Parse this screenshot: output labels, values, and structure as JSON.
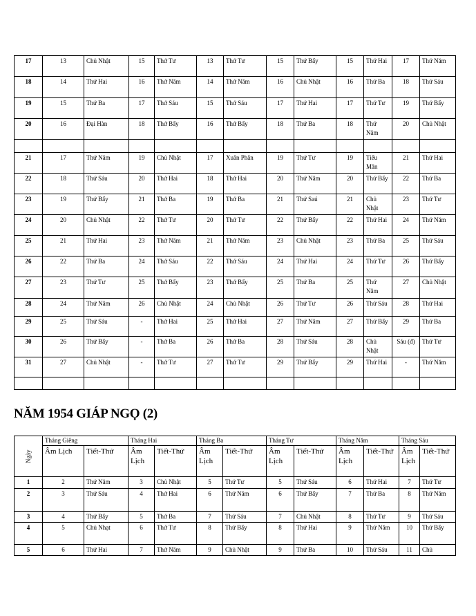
{
  "table_top": {
    "rows": [
      [
        "17",
        "13",
        "Chủ Nhật",
        "15",
        "Thứ Tư",
        "13",
        "Thứ Tư",
        "15",
        "Thứ Bẩy",
        "15",
        "Thứ Hai",
        "17",
        "Thứ Năm"
      ],
      [
        "18",
        "14",
        "Thứ Hai",
        "16",
        "Thứ Năm",
        "14",
        "Thứ Năm",
        "16",
        "Chủ Nhật",
        "16",
        "Thứ Ba",
        "18",
        "Thứ Sáu"
      ],
      [
        "19",
        "15",
        "Thứ Ba",
        "17",
        "Thứ Sáu",
        "15",
        "Thứ Sáu",
        "17",
        "Thứ Hai",
        "17",
        "Thứ Tư",
        "19",
        "Thứ Bẩy"
      ],
      [
        "20",
        "16",
        "Đại Hàn",
        "18",
        "Thứ Bẩy",
        "16",
        "Thứ Bẩy",
        "18",
        "Thứ Ba",
        "18",
        "Thứ Năm",
        "20",
        "Chủ Nhật"
      ],
      [
        "",
        "",
        "",
        "",
        "",
        "",
        "",
        "",
        "",
        "",
        "",
        "",
        ""
      ],
      [
        "21",
        "17",
        "Thứ Năm",
        "19",
        "Chủ Nhật",
        "17",
        "Xuân Phân",
        "19",
        "Thứ Tư",
        "19",
        "Tiểu Mãn",
        "21",
        "Thứ Hai"
      ],
      [
        "22",
        "18",
        "Thứ Sáu",
        "20",
        "Thứ Hai",
        "18",
        "Thứ Hai",
        "20",
        "Thứ Năm",
        "20",
        "Thứ Bẩy",
        "22",
        "Thứ Ba"
      ],
      [
        "23",
        "19",
        "Thứ Bẩy",
        "21",
        "Thứ Ba",
        "19",
        "Thứ Ba",
        "21",
        "Thứ Saú",
        "21",
        "Chủ Nhật",
        "23",
        "Thứ Tư"
      ],
      [
        "24",
        "20",
        "Chủ Nhật",
        "22",
        "Thứ Tư",
        "20",
        "Thứ Tư",
        "22",
        "Thứ Bẩy",
        "22",
        "Thứ Hai",
        "24",
        "Thứ Năm"
      ],
      [
        "25",
        "21",
        "Thứ Hai",
        "23",
        "Thứ Năm",
        "21",
        "Thứ Năm",
        "23",
        "Chủ Nhật",
        "23",
        "Thứ Ba",
        "25",
        "Thứ Sáu"
      ],
      [
        "26",
        "22",
        "Thứ Ba",
        "24",
        "Thứ Sáu",
        "22",
        "Thứ Sáu",
        "24",
        "Thứ Hai",
        "24",
        "Thứ Tư",
        "26",
        "Thứ Bẩy"
      ],
      [
        "27",
        "23",
        "Thứ Tư",
        "25",
        "Thứ Bẩy",
        "23",
        "Thứ Bẩy",
        "25",
        "Thứ Ba",
        "25",
        "Thứ Năm",
        "27",
        "Chủ Nhật"
      ],
      [
        "28",
        "24",
        "Thứ Năm",
        "26",
        "Chủ Nhật",
        "24",
        "Chủ Nhật",
        "26",
        "Thứ Tư",
        "26",
        "Thứ Sáu",
        "28",
        "Thứ Hai"
      ],
      [
        "29",
        "25",
        "Thứ Sáu",
        "-",
        "Thứ Hai",
        "25",
        "Thứ Hai",
        "27",
        "Thứ Năm",
        "27",
        "Thứ Bẩy",
        "29",
        "Thứ Ba"
      ],
      [
        "30",
        "26",
        "Thứ Bẩy",
        "-",
        "Thứ Ba",
        "26",
        "Thứ Ba",
        "28",
        "Thứ Sáu",
        "28",
        "Chủ Nhật",
        "Sáu (đ)",
        "Thứ Tư"
      ],
      [
        "31",
        "27",
        "Chủ Nhật",
        "-",
        "Thứ Tư",
        "27",
        "Thứ Tư",
        "29",
        "Thứ Bẩy",
        "29",
        "Thứ Hai",
        "-",
        "Thứ Năm"
      ],
      [
        "",
        "",
        "",
        "",
        "",
        "",
        "",
        "",
        "",
        "",
        "",
        "",
        ""
      ]
    ]
  },
  "section_title": "NĂM 1954 GIÁP NGỌ (2)",
  "table_bottom": {
    "day_header": "Ngày",
    "months": [
      "Tháng Giêng",
      "Tháng Hai",
      "Tháng  Ba",
      "Tháng Tư",
      "Tháng Năm",
      "Tháng Sáu"
    ],
    "sub_headers": [
      "Âm Lịch",
      "Tiết-Thứ",
      "Âm Lịch",
      "Tiết-Thứ",
      "Âm Lịch",
      "Tiết-Thứ",
      "Âm Lịch",
      "Tiết-Thứ",
      "Âm Lịch",
      "Tiết-Thứ",
      "Âm Lịch",
      "Tiết-Thứ"
    ],
    "rows": [
      [
        "1",
        "2",
        "Thứ Năm",
        "3",
        "Chủ Nhật",
        "5",
        "Thứ Tư",
        "5",
        "Thứ Sáu",
        "6",
        "Thứ Hai",
        "7",
        "Thứ Tư"
      ],
      [
        "2",
        "3",
        "Thứ Sáu",
        "4",
        "Thứ Hai",
        "6",
        "Thứ Năm",
        "6",
        "Thứ Bẩy",
        "7",
        "Thứ Ba",
        "8",
        "Thứ Năm"
      ],
      [
        "3",
        "4",
        "Thứ Bẩy",
        "5",
        "Thứ Ba",
        "7",
        "Thứ Sáu",
        "7",
        "Chủ Nhật",
        "8",
        "Thứ Tư",
        "9",
        "Thứ Sáu"
      ],
      [
        "4",
        "5",
        "Chủ Nhạt",
        "6",
        "Thứ Tư",
        "8",
        "Thứ Bẩy",
        "8",
        "Thứ Hai",
        "9",
        "Thứ Năm",
        "10",
        "Thứ Bẩy"
      ],
      [
        "5",
        "6",
        "Thứ Hai",
        "7",
        "Thứ Năm",
        "9",
        "Chủ Nhật",
        "9",
        "Thứ Ba",
        "10",
        "Thứ Sáu",
        "11",
        "Chủ"
      ]
    ]
  }
}
